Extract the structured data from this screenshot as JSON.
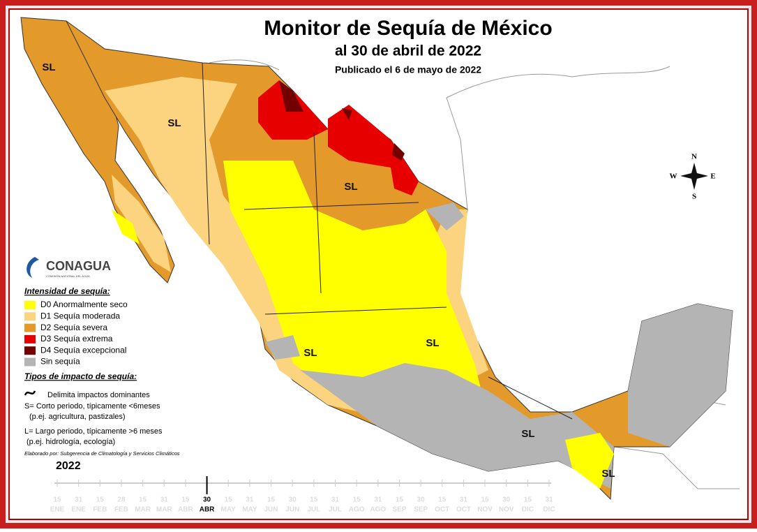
{
  "header": {
    "title": "Monitor de Sequía de México",
    "subtitle": "al 30 de abril de 2022",
    "published": "Publicado el 6 de mayo de 2022"
  },
  "map": {
    "labels": [
      "SL",
      "SL",
      "SL",
      "SL",
      "SL",
      "SL",
      "SL"
    ]
  },
  "compass": {
    "n": "N",
    "s": "S",
    "e": "E",
    "w": "W"
  },
  "logo": {
    "name": "CONAGUA",
    "subtitle": "COMISIÓN NACIONAL DEL AGUA"
  },
  "legend": {
    "title": "Intensidad de sequía:",
    "items": [
      {
        "label": "D0 Anormalmente seco",
        "color": "#ffff00"
      },
      {
        "label": "D1 Sequía moderada",
        "color": "#fcd37f"
      },
      {
        "label": "D2 Sequía severa",
        "color": "#e39a2a"
      },
      {
        "label": "D3 Sequía extrema",
        "color": "#e60000"
      },
      {
        "label": "D4 Sequía excepcional",
        "color": "#730000"
      },
      {
        "label": "Sin sequía",
        "color": "#b4b4b4"
      }
    ]
  },
  "impacts": {
    "title": "Tipos de impacto de sequía:",
    "boundary": "Delimita impactos dominantes",
    "short": "S= Corto periodo, típicamente <6meses",
    "short_examples": "(p.ej. agricultura, pastizales)",
    "long": "L= Largo periodo, típicamente >6 meses",
    "long_examples": "(p.ej. hidrología, ecología)"
  },
  "credit": "Elaborado por: Subgerencia de Climatología y Servicios Climáticos",
  "timeline": {
    "year": "2022",
    "ticks": [
      {
        "day": "15",
        "month": "ENE"
      },
      {
        "day": "31",
        "month": "ENE"
      },
      {
        "day": "15",
        "month": "FEB"
      },
      {
        "day": "28",
        "month": "FEB"
      },
      {
        "day": "15",
        "month": "MAR"
      },
      {
        "day": "31",
        "month": "MAR"
      },
      {
        "day": "15",
        "month": "ABR"
      },
      {
        "day": "30",
        "month": "ABR",
        "current": true
      },
      {
        "day": "15",
        "month": "MAY"
      },
      {
        "day": "31",
        "month": "MAY"
      },
      {
        "day": "15",
        "month": "JUN"
      },
      {
        "day": "30",
        "month": "JUN"
      },
      {
        "day": "15",
        "month": "JUL"
      },
      {
        "day": "31",
        "month": "JUL"
      },
      {
        "day": "15",
        "month": "AGO"
      },
      {
        "day": "31",
        "month": "AGO"
      },
      {
        "day": "15",
        "month": "SEP"
      },
      {
        "day": "30",
        "month": "SEP"
      },
      {
        "day": "15",
        "month": "OCT"
      },
      {
        "day": "31",
        "month": "OCT"
      },
      {
        "day": "15",
        "month": "NOV"
      },
      {
        "day": "30",
        "month": "NOV"
      },
      {
        "day": "15",
        "month": "DIC"
      },
      {
        "day": "31",
        "month": "DIC"
      }
    ]
  }
}
